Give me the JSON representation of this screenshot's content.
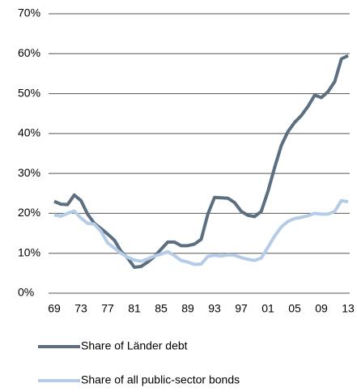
{
  "chart_data": {
    "type": "line",
    "categories": [
      "69",
      null,
      null,
      null,
      "73",
      null,
      null,
      null,
      "77",
      null,
      null,
      null,
      "81",
      null,
      null,
      null,
      "85",
      null,
      null,
      null,
      "89",
      null,
      null,
      null,
      "93",
      null,
      null,
      null,
      "97",
      null,
      null,
      null,
      "01",
      null,
      null,
      null,
      "05",
      null,
      null,
      null,
      "09",
      null,
      null,
      null,
      "13"
    ],
    "series": [
      {
        "name": "Share of Länder debt",
        "color": "#5b6f80",
        "values": [
          23,
          22.3,
          22.2,
          24.6,
          23.2,
          19.8,
          17.5,
          16.2,
          14.8,
          13.3,
          10.5,
          8.8,
          6.5,
          6.7,
          7.8,
          9.2,
          11,
          12.8,
          12.8,
          11.9,
          11.9,
          12.3,
          13.5,
          19.8,
          24,
          23.9,
          23.8,
          22.7,
          20.5,
          19.5,
          19.2,
          20.5,
          25.5,
          31.5,
          37,
          40.5,
          42.8,
          44.5,
          46.8,
          49.6,
          49,
          50.5,
          53,
          58.7,
          59.5
        ]
      },
      {
        "name": "Share of all public-sector bonds",
        "color": "#b4cce6",
        "values": [
          19.6,
          19.3,
          20,
          20.6,
          18.8,
          17.5,
          17.3,
          15.5,
          12.6,
          11.3,
          10,
          9,
          8.3,
          8,
          8.6,
          9.3,
          9.8,
          10.4,
          9.4,
          8.2,
          7.8,
          7.2,
          7.3,
          9.2,
          9.5,
          9.3,
          9.6,
          9.5,
          8.9,
          8.5,
          8.2,
          8.8,
          11.5,
          14.3,
          16.6,
          18,
          18.7,
          19,
          19.4,
          20,
          19.8,
          19.8,
          20.5,
          23.2,
          22.9
        ]
      }
    ],
    "ylim": [
      0,
      70
    ],
    "yticks": [
      {
        "value": 0,
        "label": "0%"
      },
      {
        "value": 10,
        "label": "10%"
      },
      {
        "value": 20,
        "label": "20%"
      },
      {
        "value": 30,
        "label": "30%"
      },
      {
        "value": 40,
        "label": "40%"
      },
      {
        "value": 50,
        "label": "50%"
      },
      {
        "value": 60,
        "label": "60%"
      },
      {
        "value": 70,
        "label": "70%"
      }
    ],
    "grid": true
  }
}
